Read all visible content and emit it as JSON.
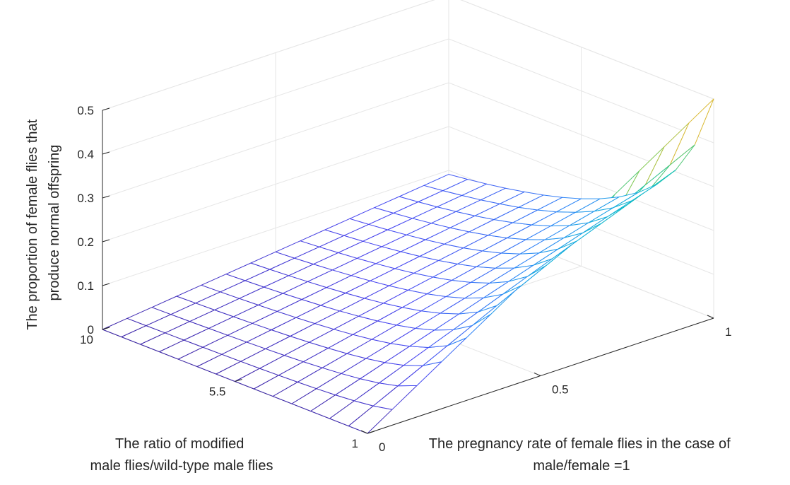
{
  "chart_data": {
    "type": "surface",
    "title": "",
    "xlabel": "The pregnancy rate of female flies in the case of male/female =1",
    "ylabel": "The ratio of modified male flies/wild-type male flies",
    "zlabel": "The proportion of female flies that produce normal offspring",
    "axis_label_lines": {
      "x": [
        "The pregnancy rate of female flies in the case of",
        "male/female =1"
      ],
      "y": [
        "The ratio of modified",
        "male flies/wild-type male flies"
      ],
      "z": [
        "The proportion of female flies that",
        "produce normal offspring"
      ]
    },
    "xlim": [
      0,
      1
    ],
    "ylim": [
      1,
      10
    ],
    "zlim": [
      0,
      0.5
    ],
    "x_ticks": [
      "0",
      "0.5",
      "1"
    ],
    "y_ticks": [
      "1",
      "5.5",
      "10"
    ],
    "z_ticks": [
      "0",
      "0.1",
      "0.2",
      "0.3",
      "0.4",
      "0.5"
    ],
    "grid": true,
    "colormap": "parula",
    "x": [
      0,
      0.0714,
      0.1429,
      0.2143,
      0.2857,
      0.3571,
      0.4286,
      0.5,
      0.5714,
      0.6429,
      0.7143,
      0.7857,
      0.8571,
      0.9286,
      1
    ],
    "y": [
      1,
      1.6429,
      2.2857,
      2.9286,
      3.5714,
      4.2143,
      4.8571,
      5.5,
      6.1429,
      6.7857,
      7.4286,
      8.0714,
      8.7143,
      9.3571,
      10
    ],
    "z_formula": "z = x / (1 + y)",
    "colors": {
      "gridline": "#e6e6e6",
      "axis": "#262626",
      "colormap_stops": [
        "#3e26a8",
        "#4745f1",
        "#2e87f7",
        "#12b4d9",
        "#15c5ad",
        "#80cb58",
        "#e1b931",
        "#f9e325"
      ]
    }
  }
}
